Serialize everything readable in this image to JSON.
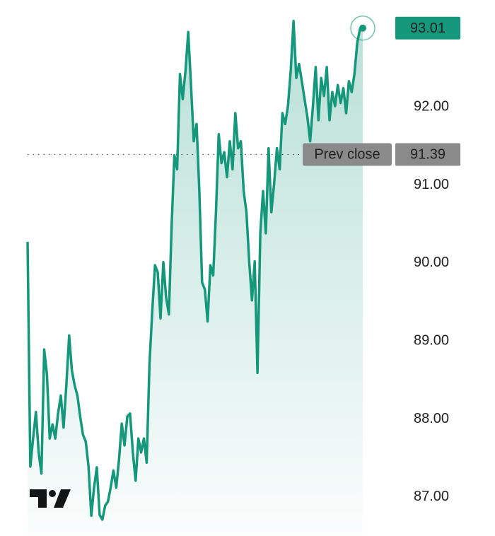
{
  "chart_data": {
    "type": "area",
    "color": "#15977b",
    "values": [
      90.27,
      87.39,
      87.75,
      88.09,
      87.57,
      87.3,
      88.89,
      88.57,
      87.75,
      87.93,
      87.75,
      88.07,
      88.3,
      87.89,
      88.43,
      89.07,
      88.62,
      88.43,
      88.3,
      88.03,
      87.8,
      87.71,
      87.39,
      86.76,
      87.12,
      87.38,
      86.77,
      86.71,
      86.89,
      86.94,
      87.12,
      87.34,
      87.12,
      87.48,
      87.94,
      87.66,
      88.03,
      88.07,
      87.57,
      87.21,
      87.75,
      87.57,
      87.75,
      87.44,
      88.71,
      89.38,
      89.97,
      89.88,
      89.29,
      90.01,
      89.56,
      89.34,
      90.47,
      91.38,
      91.2,
      92.42,
      92.1,
      92.46,
      92.96,
      92.28,
      91.56,
      91.78,
      90.92,
      89.75,
      89.66,
      89.25,
      89.97,
      89.84,
      90.65,
      91.65,
      91.28,
      91.42,
      91.1,
      91.56,
      91.2,
      91.92,
      91.47,
      91.56,
      90.92,
      90.65,
      90.02,
      89.52,
      90.02,
      88.59,
      90.38,
      90.92,
      90.38,
      91.47,
      90.65,
      91.01,
      91.47,
      91.2,
      91.92,
      91.78,
      92.01,
      92.46,
      93.1,
      92.37,
      92.55,
      92.33,
      92.1,
      91.87,
      91.56,
      92.01,
      92.51,
      91.83,
      92.37,
      92.14,
      92.51,
      91.83,
      92.19,
      92.01,
      92.28,
      92.05,
      92.24,
      91.92,
      92.33,
      92.19,
      92.42,
      92.82,
      93.0,
      93.01
    ],
    "ylim": [
      86.5,
      93.37
    ],
    "yticks": [
      {
        "value": 87,
        "label": "87.00"
      },
      {
        "value": 88,
        "label": "88.00"
      },
      {
        "value": 89,
        "label": "89.00"
      },
      {
        "value": 90,
        "label": "90.00"
      },
      {
        "value": 91,
        "label": "91.00"
      },
      {
        "value": 92,
        "label": "92.00"
      }
    ],
    "prev_close": {
      "value": 91.39,
      "label": "Prev close"
    }
  }
}
